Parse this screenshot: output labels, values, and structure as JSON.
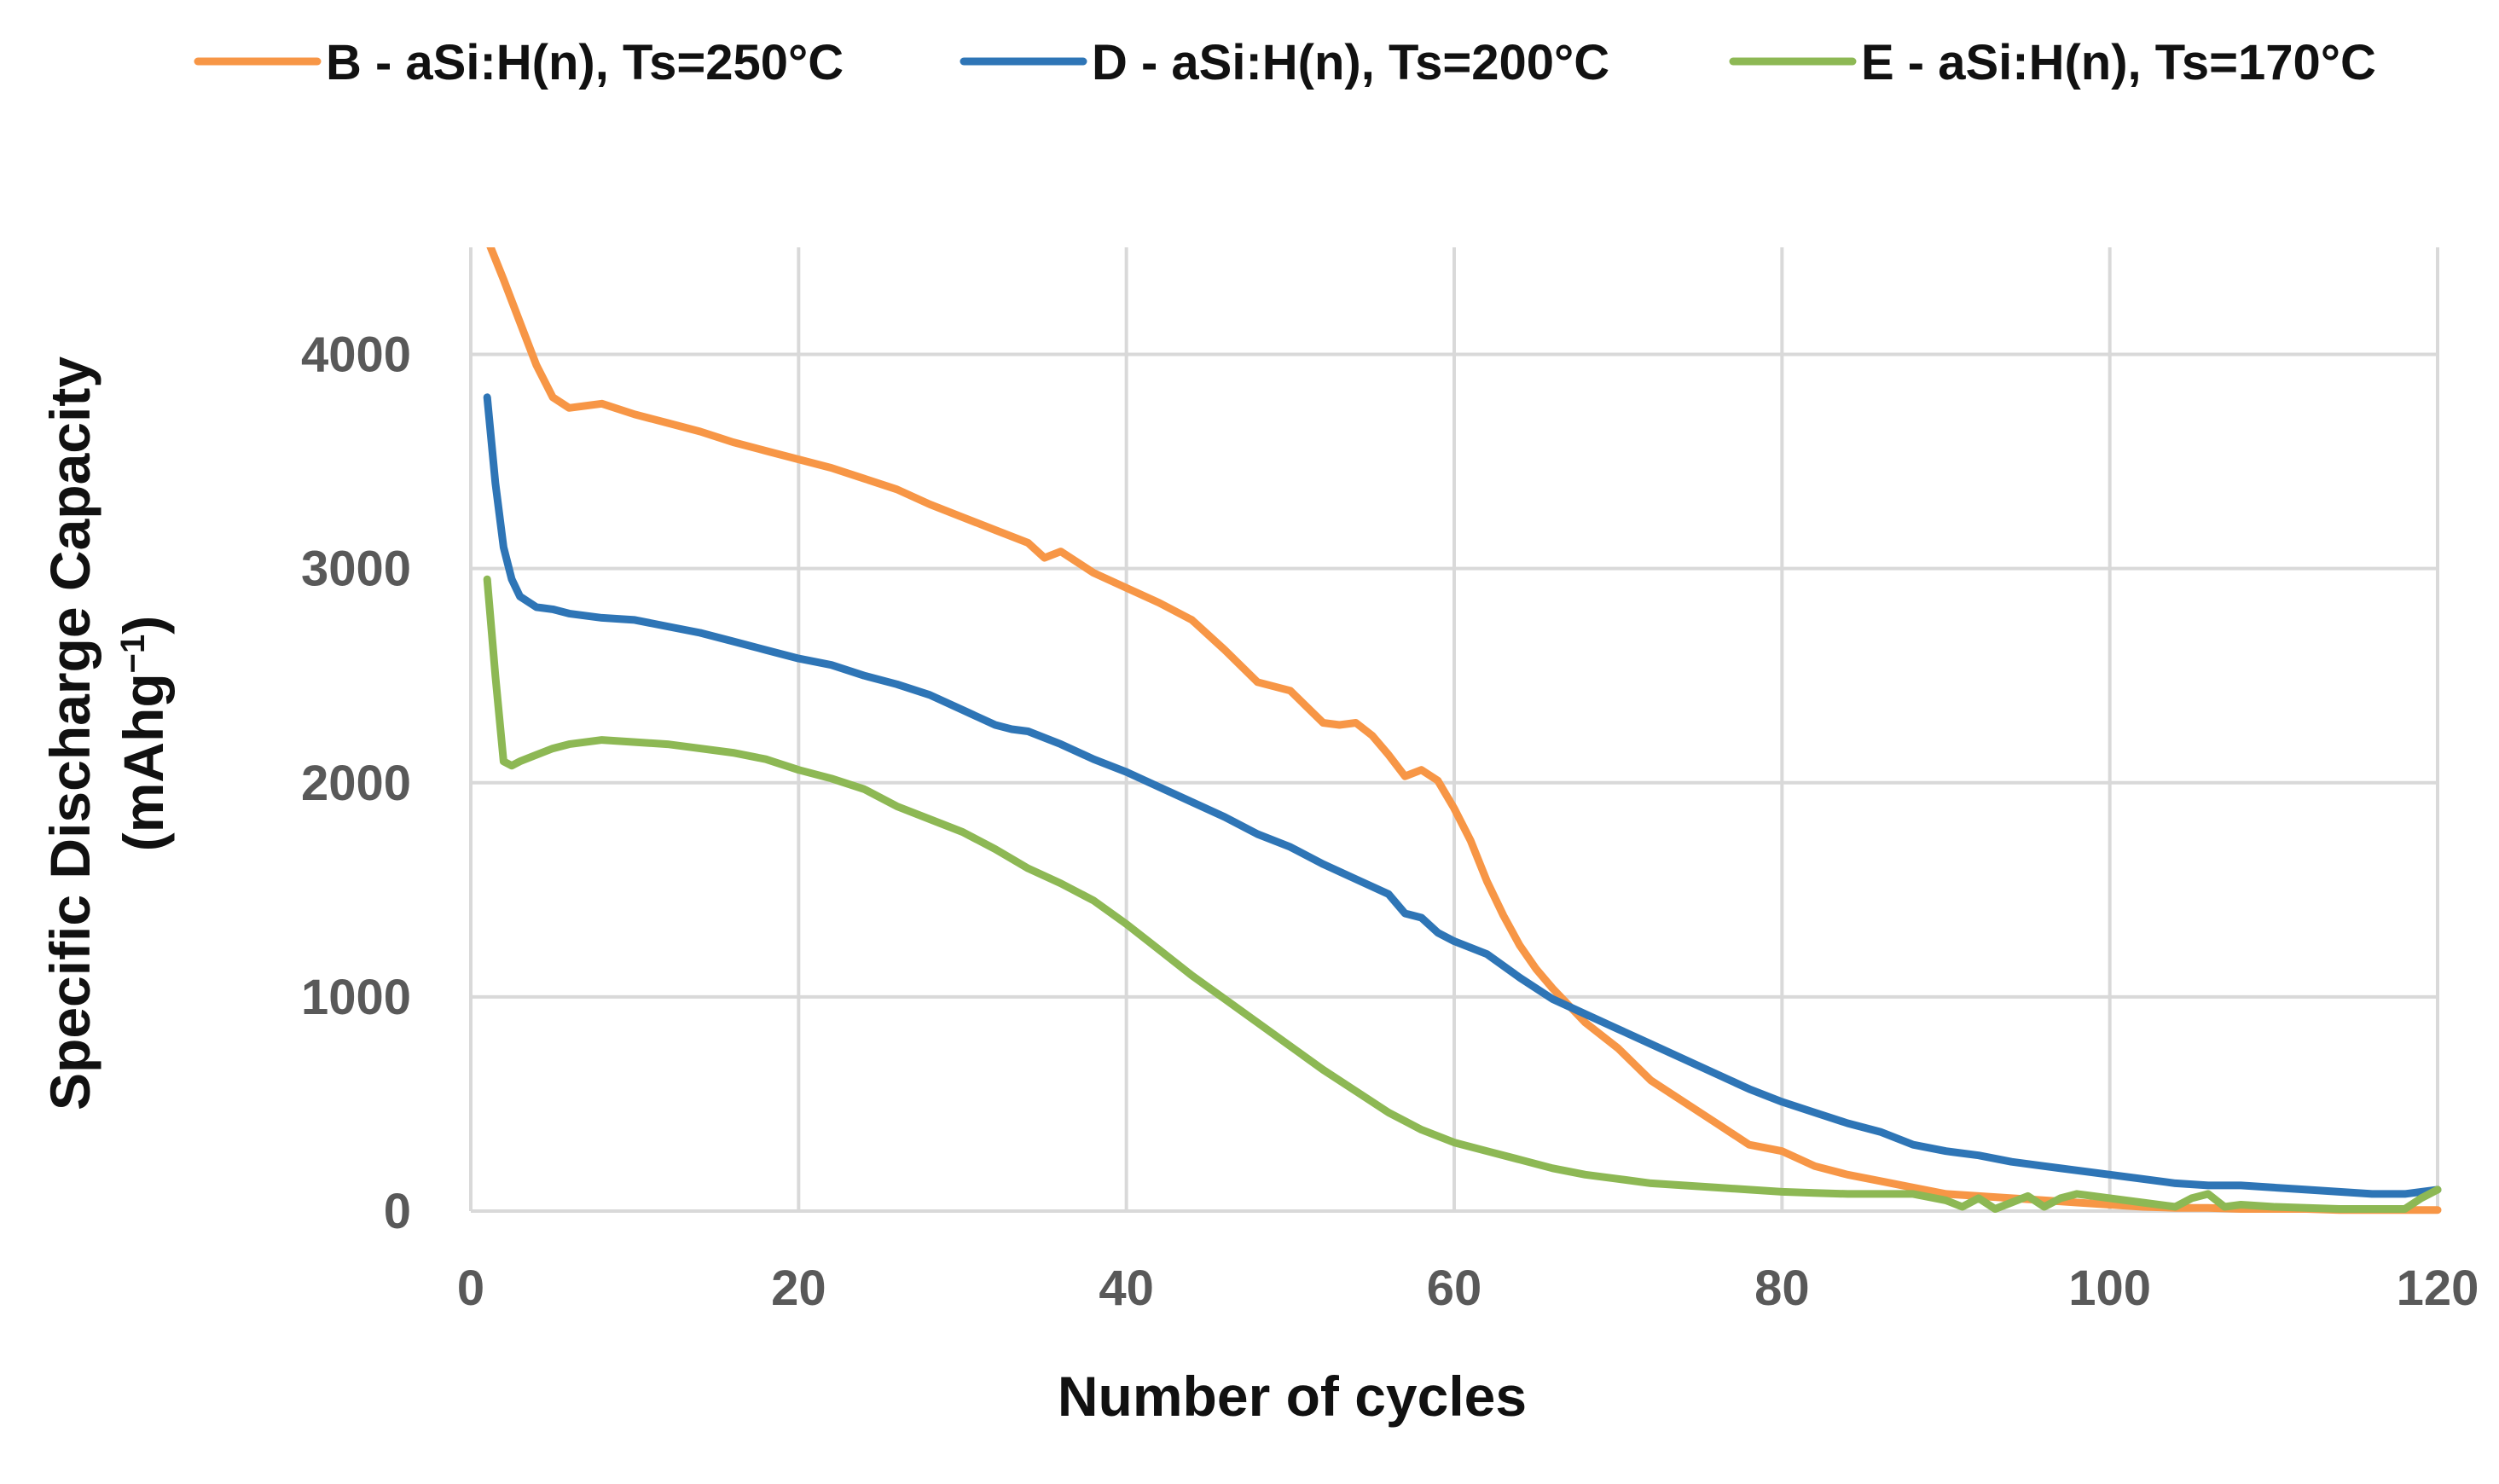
{
  "chart_data": {
    "type": "line",
    "title": "",
    "xlabel": "Number of cycles",
    "ylabel_line1": "Specific Discharge Capacity",
    "ylabel_line2_prefix": "(mAhg",
    "ylabel_line2_sup": "−1",
    "ylabel_line2_suffix": ")",
    "xlim": [
      0,
      120
    ],
    "ylim": [
      0,
      4500
    ],
    "xticks": [
      0,
      20,
      40,
      60,
      80,
      100,
      120
    ],
    "yticks": [
      0,
      1000,
      2000,
      3000,
      4000
    ],
    "grid": true,
    "legend_position": "top",
    "series": [
      {
        "name": "B - aSi:H(n), Ts=250°C",
        "color": "#F79646",
        "x": [
          1,
          2,
          3,
          4,
          5,
          6,
          8,
          10,
          12,
          14,
          16,
          18,
          20,
          22,
          24,
          26,
          28,
          30,
          32,
          34,
          35,
          36,
          38,
          40,
          42,
          44,
          46,
          48,
          50,
          52,
          53,
          54,
          55,
          56,
          57,
          58,
          59,
          60,
          61,
          62,
          63,
          64,
          65,
          66,
          68,
          70,
          72,
          74,
          76,
          78,
          80,
          82,
          84,
          86,
          88,
          90,
          92,
          94,
          96,
          98,
          100,
          102,
          104,
          106,
          108,
          110,
          112,
          114,
          116,
          118,
          120
        ],
        "values": [
          4550,
          4350,
          4150,
          3950,
          3800,
          3750,
          3770,
          3720,
          3680,
          3640,
          3590,
          3550,
          3510,
          3470,
          3420,
          3370,
          3300,
          3240,
          3180,
          3120,
          3050,
          3080,
          2980,
          2910,
          2840,
          2760,
          2620,
          2470,
          2430,
          2280,
          2270,
          2280,
          2220,
          2130,
          2030,
          2060,
          2010,
          1880,
          1730,
          1540,
          1380,
          1240,
          1130,
          1040,
          880,
          760,
          610,
          510,
          410,
          310,
          280,
          210,
          170,
          140,
          110,
          80,
          70,
          60,
          50,
          40,
          30,
          20,
          15,
          15,
          10,
          10,
          10,
          5,
          5,
          5,
          5
        ]
      },
      {
        "name": "D - aSi:H(n), Ts=200°C",
        "color": "#2E75B6",
        "x": [
          1,
          1.5,
          2,
          2.5,
          3,
          4,
          5,
          6,
          8,
          10,
          12,
          14,
          16,
          18,
          20,
          22,
          24,
          26,
          28,
          30,
          32,
          33,
          34,
          36,
          38,
          40,
          42,
          44,
          46,
          48,
          50,
          52,
          54,
          56,
          57,
          58,
          59,
          60,
          62,
          64,
          66,
          68,
          70,
          72,
          74,
          76,
          78,
          80,
          82,
          84,
          86,
          88,
          90,
          92,
          94,
          96,
          98,
          100,
          102,
          104,
          106,
          108,
          110,
          112,
          114,
          116,
          118,
          120
        ],
        "values": [
          3800,
          3400,
          3100,
          2950,
          2870,
          2820,
          2810,
          2790,
          2770,
          2760,
          2730,
          2700,
          2660,
          2620,
          2580,
          2550,
          2500,
          2460,
          2410,
          2340,
          2270,
          2250,
          2240,
          2180,
          2110,
          2050,
          1980,
          1910,
          1840,
          1760,
          1700,
          1620,
          1550,
          1480,
          1390,
          1370,
          1300,
          1260,
          1200,
          1090,
          990,
          920,
          850,
          780,
          710,
          640,
          570,
          510,
          460,
          410,
          370,
          310,
          280,
          260,
          230,
          210,
          190,
          170,
          150,
          130,
          120,
          120,
          110,
          100,
          90,
          80,
          80,
          100
        ]
      },
      {
        "name": "E - aSi:H(n), Ts=170°C",
        "color": "#8DB854",
        "x": [
          1,
          1.5,
          2,
          2.5,
          3,
          4,
          5,
          6,
          8,
          10,
          12,
          14,
          16,
          18,
          20,
          22,
          24,
          26,
          28,
          30,
          32,
          34,
          36,
          38,
          40,
          42,
          44,
          46,
          48,
          50,
          52,
          54,
          56,
          58,
          60,
          62,
          64,
          66,
          68,
          70,
          72,
          74,
          76,
          78,
          80,
          82,
          84,
          86,
          88,
          90,
          91,
          92,
          93,
          94,
          95,
          96,
          97,
          98,
          100,
          102,
          104,
          105,
          106,
          107,
          108,
          110,
          112,
          114,
          116,
          118,
          119,
          120
        ],
        "values": [
          2950,
          2500,
          2100,
          2080,
          2100,
          2130,
          2160,
          2180,
          2200,
          2190,
          2180,
          2160,
          2140,
          2110,
          2060,
          2020,
          1970,
          1890,
          1830,
          1770,
          1690,
          1600,
          1530,
          1450,
          1340,
          1220,
          1100,
          990,
          880,
          770,
          660,
          560,
          460,
          380,
          320,
          280,
          240,
          200,
          170,
          150,
          130,
          120,
          110,
          100,
          90,
          85,
          80,
          80,
          80,
          50,
          20,
          60,
          10,
          40,
          70,
          20,
          60,
          80,
          60,
          40,
          20,
          60,
          80,
          20,
          30,
          20,
          15,
          10,
          10,
          10,
          60,
          100
        ]
      }
    ]
  }
}
